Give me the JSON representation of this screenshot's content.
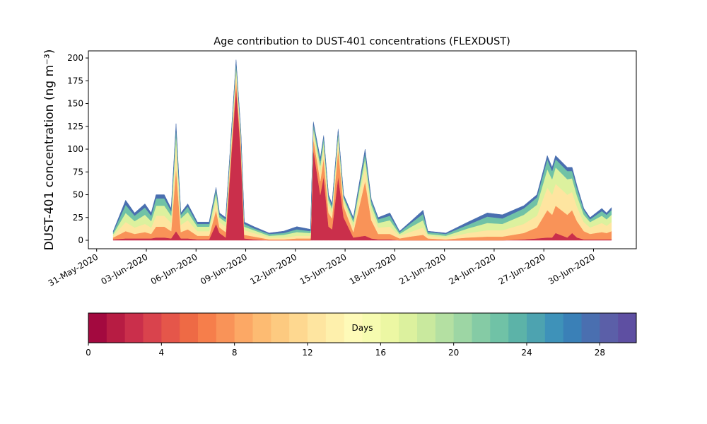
{
  "chart_data": [
    {
      "type": "stacked_area",
      "title": "Age contribution to DUST-401 concentrations (FLEXDUST)",
      "y_label": "DUST-401 concentration (ng m⁻³)",
      "x": [
        "2020-06-01T00:00",
        "2020-06-01T18:00",
        "2020-06-02T07:00",
        "2020-06-02T22:00",
        "2020-06-03T07:00",
        "2020-06-03T14:00",
        "2020-06-04T02:00",
        "2020-06-04T12:00",
        "2020-06-04T19:00",
        "2020-06-05T02:00",
        "2020-06-05T12:00",
        "2020-06-06T02:00",
        "2020-06-06T19:00",
        "2020-06-07T05:00",
        "2020-06-07T10:00",
        "2020-06-07T19:00",
        "2020-06-08T10:00",
        "2020-06-08T17:00",
        "2020-06-08T22:00",
        "2020-06-09T12:00",
        "2020-06-10T10:00",
        "2020-06-11T07:00",
        "2020-06-12T02:00",
        "2020-06-12T22:00",
        "2020-06-13T02:00",
        "2020-06-13T12:00",
        "2020-06-13T17:00",
        "2020-06-14T00:00",
        "2020-06-14T05:00",
        "2020-06-14T14:00",
        "2020-06-14T22:00",
        "2020-06-15T12:00",
        "2020-06-16T05:00",
        "2020-06-16T14:00",
        "2020-06-17T00:00",
        "2020-06-17T17:00",
        "2020-06-18T07:00",
        "2020-06-18T22:00",
        "2020-06-19T17:00",
        "2020-06-20T00:00",
        "2020-06-21T02:00",
        "2020-06-22T10:00",
        "2020-06-23T14:00",
        "2020-06-24T12:00",
        "2020-06-25T19:00",
        "2020-06-26T14:00",
        "2020-06-27T05:00",
        "2020-06-27T12:00",
        "2020-06-27T17:00",
        "2020-06-28T10:00",
        "2020-06-28T17:00",
        "2020-06-29T00:00",
        "2020-06-29T10:00",
        "2020-06-29T19:00",
        "2020-06-30T12:00",
        "2020-06-30T19:00",
        "2020-07-01T02:00"
      ],
      "series": [
        {
          "color": "#ca2f4b",
          "values": [
            1,
            2,
            2,
            2,
            2,
            3,
            3,
            2,
            10,
            2,
            2,
            1,
            1,
            18,
            8,
            3,
            168,
            95,
            2,
            1,
            0,
            0,
            0,
            0,
            100,
            50,
            70,
            15,
            12,
            70,
            25,
            3,
            5,
            2,
            1,
            1,
            0,
            0,
            0,
            0,
            0,
            0,
            0,
            0,
            1,
            2,
            3,
            3,
            8,
            3,
            8,
            3,
            1,
            1,
            1,
            1,
            1
          ]
        },
        {
          "color": "#f99358",
          "values": [
            2,
            8,
            5,
            7,
            5,
            12,
            12,
            8,
            70,
            7,
            10,
            4,
            4,
            15,
            6,
            6,
            10,
            8,
            4,
            3,
            1,
            1,
            2,
            2,
            12,
            15,
            20,
            15,
            12,
            30,
            12,
            6,
            60,
            20,
            6,
            6,
            2,
            4,
            6,
            2,
            1,
            3,
            4,
            4,
            7,
            12,
            30,
            25,
            30,
            25,
            25,
            18,
            9,
            6,
            8,
            7,
            9
          ]
        },
        {
          "color": "#fee5a0",
          "values": [
            2,
            10,
            7,
            9,
            7,
            12,
            12,
            9,
            25,
            8,
            10,
            5,
            5,
            10,
            6,
            6,
            8,
            7,
            5,
            4,
            2,
            2,
            3,
            3,
            7,
            10,
            10,
            8,
            6,
            10,
            5,
            6,
            15,
            10,
            7,
            8,
            3,
            5,
            8,
            3,
            2,
            5,
            7,
            7,
            10,
            13,
            25,
            22,
            24,
            22,
            20,
            16,
            10,
            7,
            10,
            8,
            10
          ]
        },
        {
          "color": "#dcf19e",
          "values": [
            2,
            10,
            7,
            10,
            7,
            11,
            11,
            8,
            12,
            7,
            9,
            5,
            5,
            8,
            5,
            5,
            6,
            5,
            4,
            3,
            2,
            3,
            4,
            3,
            5,
            7,
            8,
            6,
            5,
            6,
            4,
            5,
            10,
            7,
            5,
            7,
            2,
            5,
            8,
            2,
            2,
            5,
            8,
            7,
            10,
            12,
            20,
            17,
            18,
            17,
            15,
            12,
            8,
            6,
            8,
            7,
            8
          ]
        },
        {
          "color": "#70c2a6",
          "values": [
            2,
            9,
            6,
            8,
            6,
            8,
            8,
            5,
            7,
            4,
            6,
            3,
            3,
            5,
            3,
            3,
            4,
            3,
            3,
            2,
            2,
            2,
            3,
            2,
            4,
            5,
            5,
            4,
            3,
            4,
            2,
            3,
            6,
            4,
            4,
            5,
            2,
            4,
            7,
            2,
            2,
            4,
            7,
            6,
            7,
            8,
            11,
            9,
            9,
            9,
            8,
            8,
            5,
            3,
            5,
            5,
            5
          ]
        },
        {
          "color": "#4a6fb0",
          "values": [
            1,
            5,
            3,
            4,
            3,
            4,
            4,
            3,
            4,
            2,
            3,
            2,
            2,
            2,
            2,
            2,
            2,
            2,
            2,
            2,
            1,
            2,
            3,
            2,
            2,
            3,
            2,
            2,
            2,
            2,
            2,
            2,
            4,
            2,
            2,
            3,
            1,
            2,
            4,
            1,
            1,
            3,
            4,
            4,
            3,
            3,
            4,
            4,
            4,
            4,
            4,
            3,
            2,
            2,
            3,
            2,
            3
          ]
        }
      ],
      "xlim": [
        "2020-05-30T12:00",
        "2020-07-02T14:00"
      ],
      "xticks": [
        {
          "value": "2020-05-31T00:00",
          "label": "31-May-2020"
        },
        {
          "value": "2020-06-03T00:00",
          "label": "03-Jun-2020"
        },
        {
          "value": "2020-06-06T00:00",
          "label": "06-Jun-2020"
        },
        {
          "value": "2020-06-09T00:00",
          "label": "09-Jun-2020"
        },
        {
          "value": "2020-06-12T00:00",
          "label": "12-Jun-2020"
        },
        {
          "value": "2020-06-15T00:00",
          "label": "15-Jun-2020"
        },
        {
          "value": "2020-06-18T00:00",
          "label": "18-Jun-2020"
        },
        {
          "value": "2020-06-21T00:00",
          "label": "21-Jun-2020"
        },
        {
          "value": "2020-06-24T00:00",
          "label": "24-Jun-2020"
        },
        {
          "value": "2020-06-27T00:00",
          "label": "27-Jun-2020"
        },
        {
          "value": "2020-06-30T00:00",
          "label": "30-Jun-2020"
        }
      ],
      "ylim": [
        -9.3,
        207.8
      ],
      "yticks": [
        0,
        25,
        50,
        75,
        100,
        125,
        150,
        175,
        200
      ],
      "grid": false
    },
    {
      "type": "colorbar",
      "label": "Days",
      "colors": [
        "#a3093f",
        "#b71c43",
        "#ca2f4b",
        "#d9434d",
        "#e5564a",
        "#ee6a45",
        "#f67e4b",
        "#f99358",
        "#fca865",
        "#fdbb72",
        "#fdca80",
        "#fed890",
        "#fee5a0",
        "#fef0ac",
        "#fefab8",
        "#f6fbb0",
        "#ecf7a3",
        "#dcf19e",
        "#c9e99e",
        "#b4e0a2",
        "#9dd6a4",
        "#85cba5",
        "#70c2a6",
        "#5cb3a8",
        "#4da3b0",
        "#3e92b9",
        "#3a80b7",
        "#4a6fb0",
        "#5b5fa8",
        "#5e4fa2"
      ],
      "xlim": [
        0,
        30
      ],
      "xticks": [
        0,
        4,
        8,
        12,
        16,
        20,
        24,
        28
      ]
    }
  ]
}
